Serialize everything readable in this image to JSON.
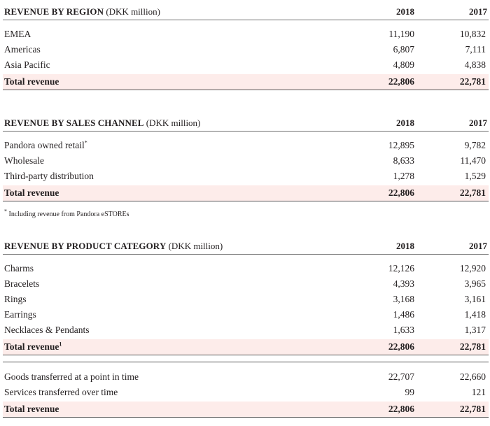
{
  "tables": [
    {
      "title": "REVENUE BY REGION",
      "unit": "(DKK million)",
      "col1": "2018",
      "col2": "2017",
      "rows": [
        {
          "label": "EMEA",
          "v2018": "11,190",
          "v2017": "10,832"
        },
        {
          "label": "Americas",
          "v2018": "6,807",
          "v2017": "7,111"
        },
        {
          "label": "Asia Pacific",
          "v2018": "4,809",
          "v2017": "4,838"
        }
      ],
      "total": {
        "label": "Total revenue",
        "v2018": "22,806",
        "v2017": "22,781"
      }
    },
    {
      "title": "REVENUE BY SALES CHANNEL",
      "unit": "(DKK million)",
      "col1": "2018",
      "col2": "2017",
      "rows": [
        {
          "label": "Pandora owned retail",
          "v2018": "12,895",
          "v2017": "9,782"
        },
        {
          "label": "Wholesale",
          "v2018": "8,633",
          "v2017": "11,470"
        },
        {
          "label": "Third-party distribution",
          "v2018": "1,278",
          "v2017": "1,529"
        }
      ],
      "total": {
        "label": "Total revenue",
        "v2018": "22,806",
        "v2017": "22,781"
      },
      "footnote": "Including revenue from Pandora eSTOREs"
    },
    {
      "title": "REVENUE BY PRODUCT CATEGORY",
      "unit": "(DKK million)",
      "col1": "2018",
      "col2": "2017",
      "rows": [
        {
          "label": "Charms",
          "v2018": "12,126",
          "v2017": "12,920"
        },
        {
          "label": "Bracelets",
          "v2018": "4,393",
          "v2017": "3,965"
        },
        {
          "label": "Rings",
          "v2018": "3,168",
          "v2017": "3,161"
        },
        {
          "label": "Earrings",
          "v2018": "1,486",
          "v2017": "1,418"
        },
        {
          "label": "Necklaces & Pendants",
          "v2018": "1,633",
          "v2017": "1,317"
        }
      ],
      "total": {
        "label": "Total revenue",
        "v2018": "22,806",
        "v2017": "22,781"
      }
    },
    {
      "rows": [
        {
          "label": "Goods transferred at a point in time",
          "v2018": "22,707",
          "v2017": "22,660"
        },
        {
          "label": "Services transferred over time",
          "v2018": "99",
          "v2017": "121"
        }
      ],
      "total": {
        "label": "Total revenue",
        "v2018": "22,806",
        "v2017": "22,781"
      }
    }
  ],
  "marks": {
    "asterisk": "*",
    "footnote_ref": "1"
  }
}
